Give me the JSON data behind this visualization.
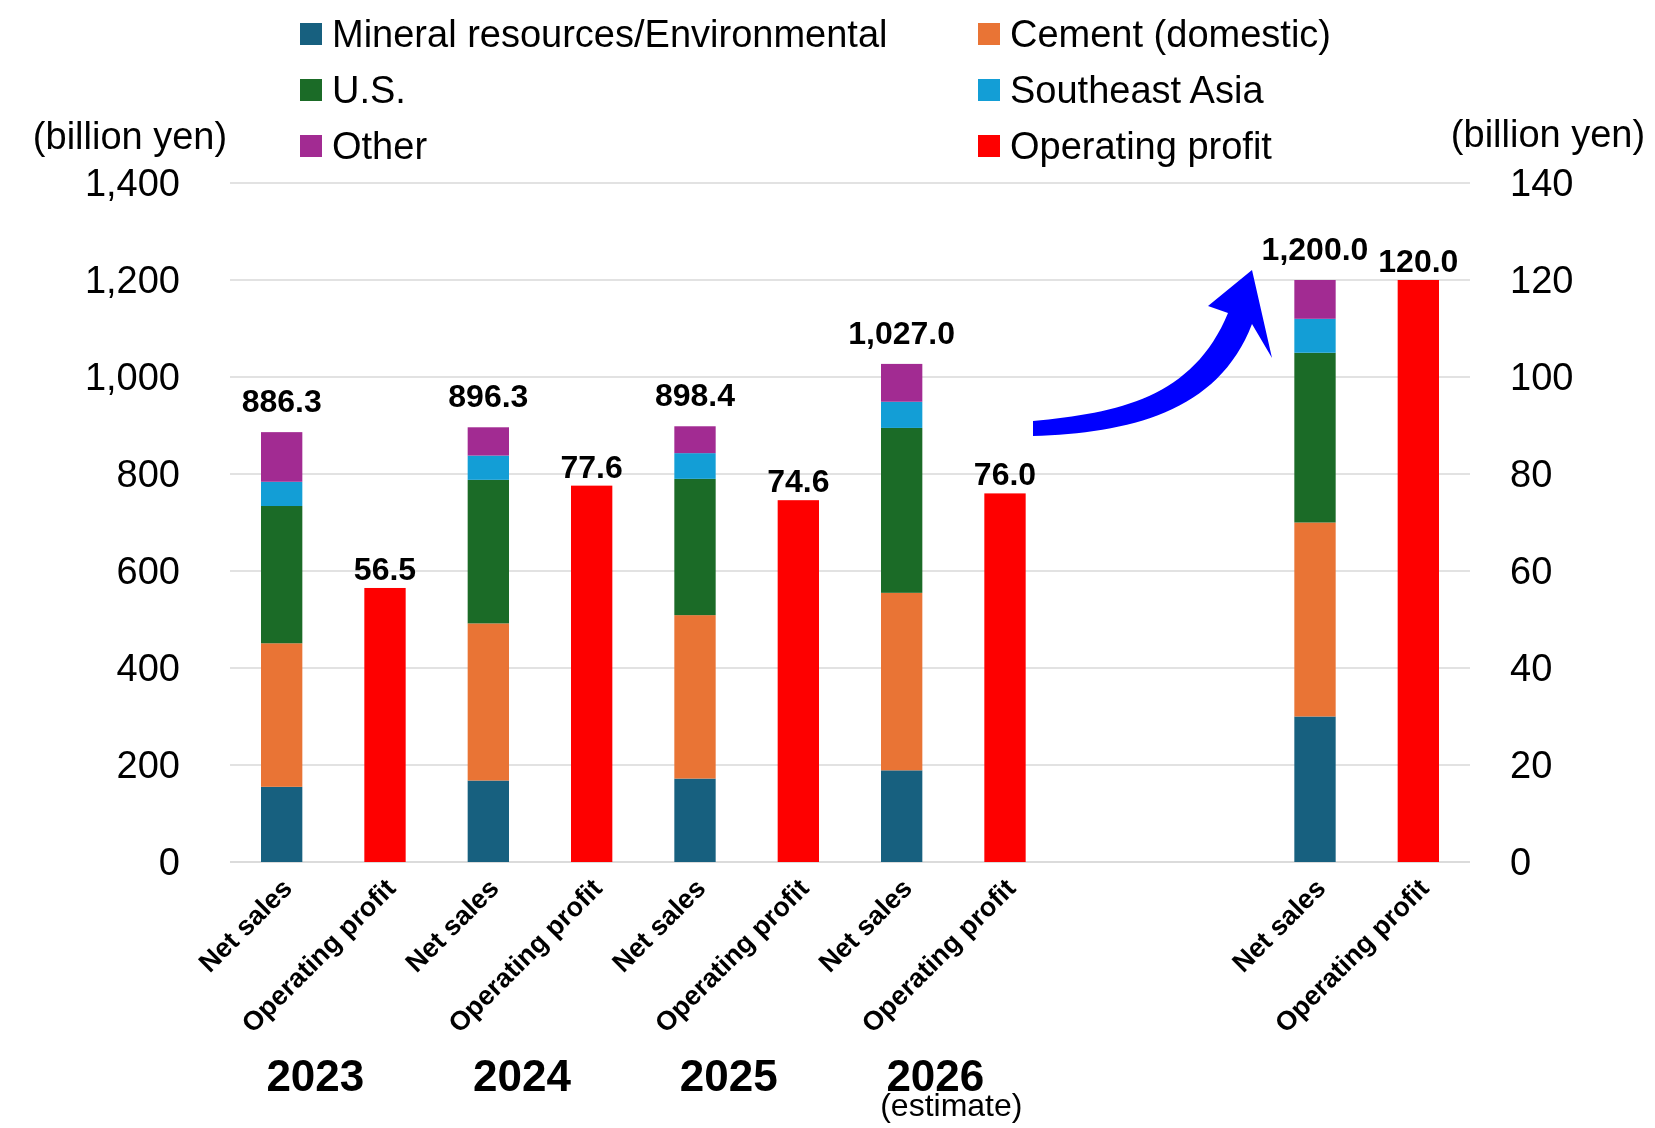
{
  "chart_data": {
    "type": "bar",
    "stacked": true,
    "categories": [
      "Net sales",
      "Operating profit",
      "Net sales",
      "Operating profit",
      "Net sales",
      "Operating profit",
      "Net sales",
      "Operating profit",
      null,
      null,
      "Net sales",
      "Operating profit"
    ],
    "series": [
      {
        "name": "Mineral resources/Environmental",
        "color": "#17607f",
        "values": [
          155,
          null,
          168,
          null,
          172,
          null,
          189,
          null,
          null,
          null,
          300,
          null
        ]
      },
      {
        "name": "Cement (domestic)",
        "color": "#e97435",
        "values": [
          296,
          null,
          324,
          null,
          337,
          null,
          366,
          null,
          null,
          null,
          400,
          null
        ]
      },
      {
        "name": "U.S.",
        "color": "#1b6b27",
        "values": [
          283,
          null,
          296,
          null,
          281,
          null,
          340,
          null,
          null,
          null,
          350,
          null
        ]
      },
      {
        "name": "Southeast Asia",
        "color": "#139ed6",
        "values": [
          50,
          null,
          50,
          null,
          53,
          null,
          54,
          null,
          null,
          null,
          70,
          null
        ]
      },
      {
        "name": "Other",
        "color": "#a22b92",
        "values": [
          102.3,
          null,
          58.3,
          null,
          55.4,
          null,
          78,
          null,
          null,
          null,
          80,
          null
        ]
      },
      {
        "name": "Operating profit",
        "color": "#fe0000",
        "axis": "y2",
        "values": [
          null,
          56.5,
          null,
          77.6,
          null,
          74.6,
          null,
          76.0,
          null,
          null,
          null,
          120.0
        ],
        "value_labels": [
          null,
          "56.5",
          null,
          "77.6",
          null,
          "74.6",
          null,
          "76.0",
          null,
          null,
          null,
          "120.0"
        ]
      }
    ],
    "totals": [
      "886.3",
      null,
      "896.3",
      null,
      "898.4",
      null,
      "1,027.0",
      null,
      null,
      null,
      "1,200.0",
      null
    ],
    "ylabel": "(billion yen)",
    "y2label": "(billion yen)",
    "ylim": [
      0,
      1400
    ],
    "yticks": [
      0,
      {
        "value": 200,
        "label": "200"
      },
      {
        "value": 400,
        "label": "400"
      },
      {
        "value": 600,
        "label": "600"
      },
      {
        "value": 800,
        "label": "800"
      },
      {
        "value": 1000,
        "label": "1,000"
      },
      {
        "value": 1200,
        "label": "1,200"
      },
      {
        "value": 1400,
        "label": "1,400"
      }
    ],
    "y2lim": [
      0,
      140
    ],
    "y2ticks": [
      0,
      20,
      40,
      60,
      80,
      100,
      120,
      140
    ],
    "grid": "y",
    "legend": "top",
    "annotations": [
      "2023",
      "2024",
      "2025",
      "2026",
      "(estimate)"
    ]
  }
}
